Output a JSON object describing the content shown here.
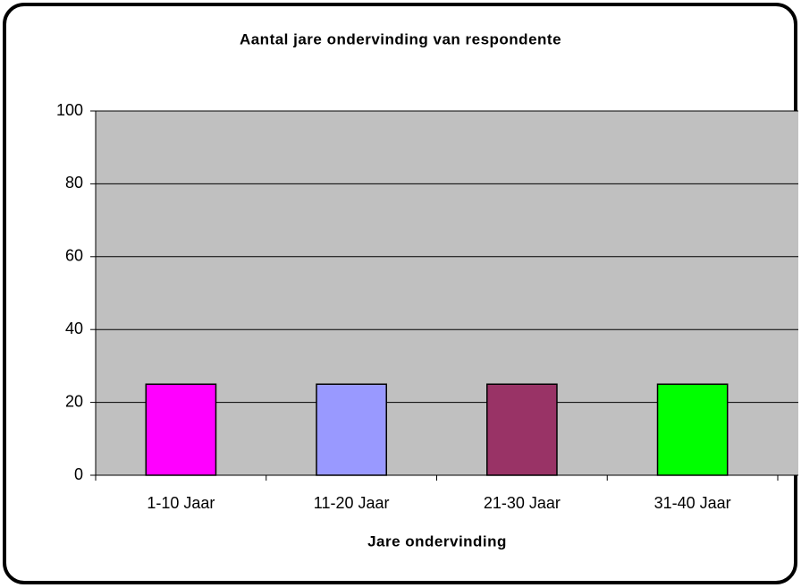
{
  "chart_data": {
    "type": "bar",
    "title": "Aantal jare ondervinding van respondente",
    "x_label": "Jare ondervinding",
    "categories": [
      "1-10 Jaar",
      "11-20 Jaar",
      "21-30 Jaar",
      "31-40 Jaar"
    ],
    "values": [
      25,
      25,
      25,
      25
    ],
    "colors": [
      "#ff00ff",
      "#9999ff",
      "#993366",
      "#00ff00"
    ],
    "ylim": [
      0,
      100
    ],
    "yticks": [
      0,
      20,
      40,
      60,
      80,
      100
    ],
    "grid": true
  }
}
